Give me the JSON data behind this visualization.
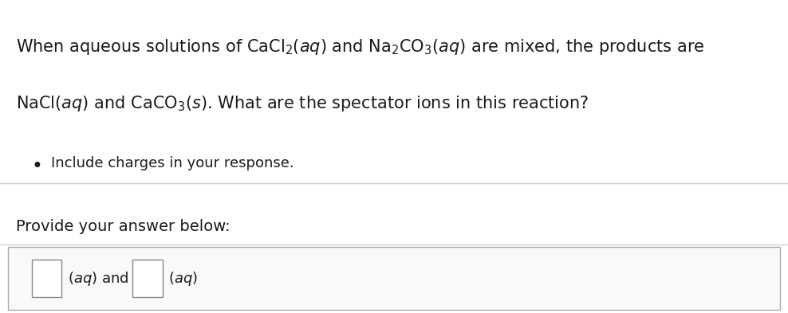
{
  "background_color": "#ffffff",
  "text_color": "#333333",
  "dark_text_color": "#1a1a1a",
  "separator_color": "#cccccc",
  "box_border_color": "#aaaaaa",
  "box_fill_color": "#f9f9f9",
  "line1": "When aqueous solutions of $\\mathrm{CaCl_2}$$(aq)$ and $\\mathrm{Na_2CO_3}$$(aq)$ are mixed, the products are",
  "line2": "$\\mathrm{NaCl}$$(aq)$ and $\\mathrm{CaCO_3}$$(s)$. What are the spectator ions in this reaction?",
  "bullet_text": "Include charges in your response.",
  "provide_text": "Provide your answer below:",
  "font_size_main": 15,
  "font_size_bullet": 13,
  "font_size_provide": 14,
  "font_size_answer": 13
}
